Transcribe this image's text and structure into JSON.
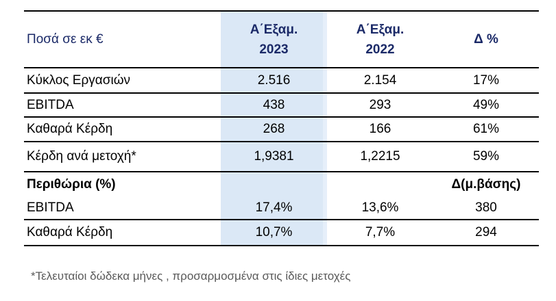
{
  "table": {
    "unit_label": "Ποσά σε εκ €",
    "columns": {
      "col2023_line1": "Α΄Εξαμ.",
      "col2023_line2": "2023",
      "col2022_line1": "Α΄Εξαμ.",
      "col2022_line2": "2022",
      "delta": "Δ %"
    },
    "rows": [
      {
        "label": "Κύκλος Εργασιών",
        "y2023": "2.516",
        "y2022": "2.154",
        "delta": "17%"
      },
      {
        "label": "EBITDA",
        "y2023": "438",
        "y2022": "293",
        "delta": "49%"
      },
      {
        "label": "Καθαρά Κέρδη",
        "y2023": "268",
        "y2022": "166",
        "delta": "61%"
      },
      {
        "label": "Κέρδη ανά μετοχή*",
        "y2023": "1,9381",
        "y2022": "1,2215",
        "delta": "59%"
      },
      {
        "label": "Περιθώρια (%)",
        "y2023": "",
        "y2022": "",
        "delta": "Δ(μ.βάσης)"
      },
      {
        "label": "EBITDA",
        "y2023": "17,4%",
        "y2022": "13,6%",
        "delta": "380"
      },
      {
        "label": "Καθαρά Κέρδη",
        "y2023": "10,7%",
        "y2022": "7,7%",
        "delta": "294"
      }
    ],
    "footnote": "*Τελευταίοι δώδεκα μήνες , προσαρμοσμένα στις ίδιες μετοχές"
  },
  "colors": {
    "highlight_column_bg": "#dbe8f6",
    "header_text": "#1b2a68",
    "body_text": "#000000",
    "rule_lines": "#000000",
    "footnote_text": "#595959"
  }
}
